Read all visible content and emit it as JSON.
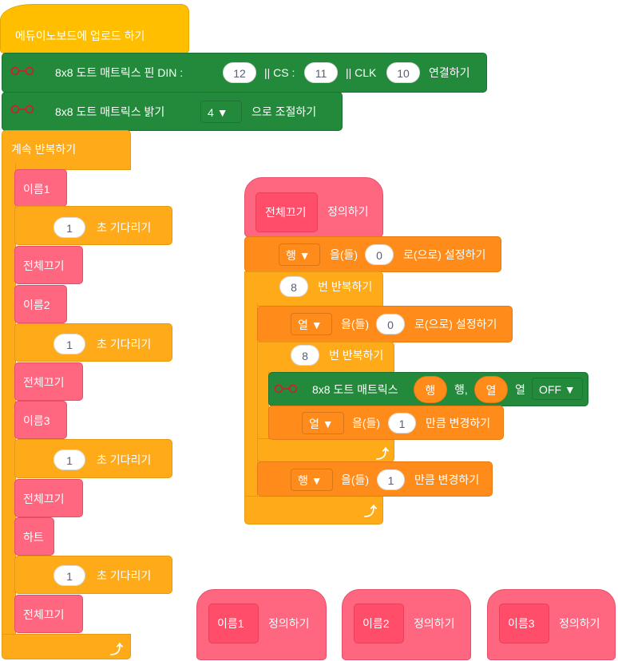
{
  "upload_hat": "에듀이노보드에 업로드 하기",
  "connect": {
    "label": "8x8 도트 매트릭스 핀 DIN :",
    "din": "12",
    "cs_label": "|| CS :",
    "cs": "11",
    "clk_label": "|| CLK",
    "clk": "10",
    "suffix": "연결하기"
  },
  "brightness": {
    "label": "8x8 도트 매트릭스 밝기",
    "value": "4",
    "suffix": "으로 조절하기"
  },
  "forever": "계속 반복하기",
  "main_blocks": [
    {
      "label": "이름1"
    },
    {
      "value": "1",
      "label": "초 기다리기"
    },
    {
      "label": "전체끄기"
    },
    {
      "label": "이름2"
    },
    {
      "value": "1",
      "label": "초 기다리기"
    },
    {
      "label": "전체끄기"
    },
    {
      "label": "이름3"
    },
    {
      "value": "1",
      "label": "초 기다리기"
    },
    {
      "label": "전체끄기"
    },
    {
      "label": "하트"
    },
    {
      "value": "1",
      "label": "초 기다리기"
    },
    {
      "label": "전체끄기"
    }
  ],
  "define_all_off": {
    "name": "전체끄기",
    "label": "정의하기"
  },
  "set_row": {
    "var": "행",
    "mid": "을(들)",
    "value": "0",
    "suffix": "로(으로) 설정하기"
  },
  "repeat_outer": {
    "value": "8",
    "label": "번 반복하기"
  },
  "set_col": {
    "var": "열",
    "mid": "을(들)",
    "value": "0",
    "suffix": "로(으로) 설정하기"
  },
  "repeat_inner": {
    "value": "8",
    "label": "번 반복하기"
  },
  "dot": {
    "label": "8x8 도트 매트릭스",
    "row": "행",
    "row_label": "행,",
    "col": "열",
    "col_label": "열",
    "state": "OFF"
  },
  "change_col": {
    "var": "열",
    "mid": "을(들)",
    "value": "1",
    "suffix": "만큼 변경하기"
  },
  "change_row": {
    "var": "행",
    "mid": "을(들)",
    "value": "1",
    "suffix": "만큼 변경하기"
  },
  "defines": [
    {
      "name": "이름1",
      "label": "정의하기"
    },
    {
      "name": "이름2",
      "label": "정의하기"
    },
    {
      "name": "이름3",
      "label": "정의하기"
    }
  ],
  "colors": {
    "event": "#ffbf00",
    "extension": "#238a3c",
    "control": "#ffab19",
    "custom": "#ff6680",
    "variable": "#ff8c1a"
  }
}
